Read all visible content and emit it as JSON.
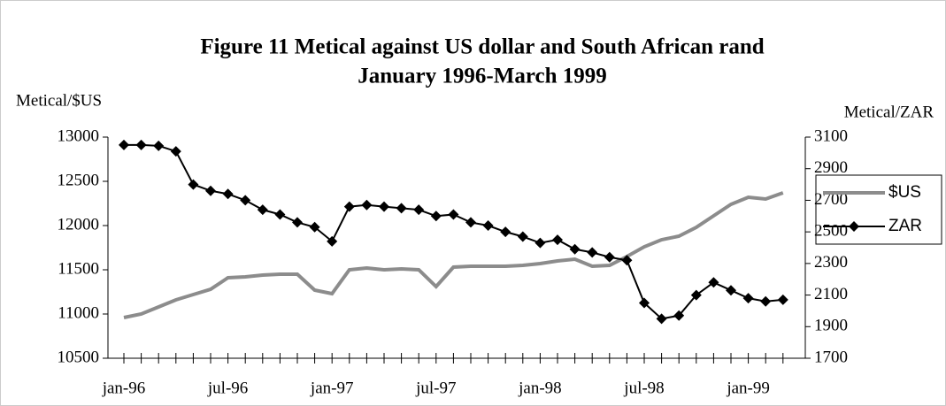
{
  "chart_data": {
    "type": "line",
    "title": "Figure 11 Metical against US dollar and South African rand",
    "subtitle": "January 1996-March 1999",
    "y_label": "Metical/$US",
    "y2_label": "Metical/ZAR",
    "categories": [
      "jan-96",
      null,
      null,
      null,
      null,
      null,
      "jul-96",
      null,
      null,
      null,
      null,
      null,
      "jan-97",
      null,
      null,
      null,
      null,
      null,
      "jul-97",
      null,
      null,
      null,
      null,
      null,
      "jan-98",
      null,
      null,
      null,
      null,
      null,
      "jul-98",
      null,
      null,
      null,
      null,
      null,
      "jan-99",
      null,
      null
    ],
    "series": [
      {
        "name": "$US",
        "color": "#8c8c8c",
        "marker": "none",
        "values": [
          10960,
          11000,
          11080,
          11160,
          11220,
          11280,
          11410,
          11420,
          11440,
          11450,
          11450,
          11270,
          11230,
          11500,
          11520,
          11500,
          11510,
          11500,
          11310,
          11530,
          11540,
          11540,
          11540,
          11550,
          11570,
          11600,
          11620,
          11540,
          11550,
          11650,
          11760,
          11840,
          11880,
          11980,
          12110,
          12240,
          12320,
          12300,
          12370
        ]
      },
      {
        "name": "ZAR",
        "color": "#000000",
        "marker": "diamond",
        "axis": "y2",
        "values": [
          3050,
          3050,
          3045,
          3010,
          2800,
          2760,
          2740,
          2700,
          2640,
          2610,
          2560,
          2530,
          2440,
          2660,
          2670,
          2660,
          2650,
          2640,
          2600,
          2610,
          2560,
          2540,
          2500,
          2470,
          2430,
          2450,
          2390,
          2370,
          2340,
          2320,
          2050,
          1950,
          1970,
          2100,
          2180,
          2130,
          2080,
          2060,
          2070
        ]
      }
    ],
    "ylim": [
      10500,
      13000
    ],
    "yticks": [
      10500,
      11000,
      11500,
      12000,
      12500,
      13000
    ],
    "y2lim": [
      1700,
      3100
    ],
    "y2ticks": [
      1700,
      1900,
      2100,
      2300,
      2500,
      2700,
      2900,
      3100
    ],
    "legend": "right",
    "grid": false
  }
}
